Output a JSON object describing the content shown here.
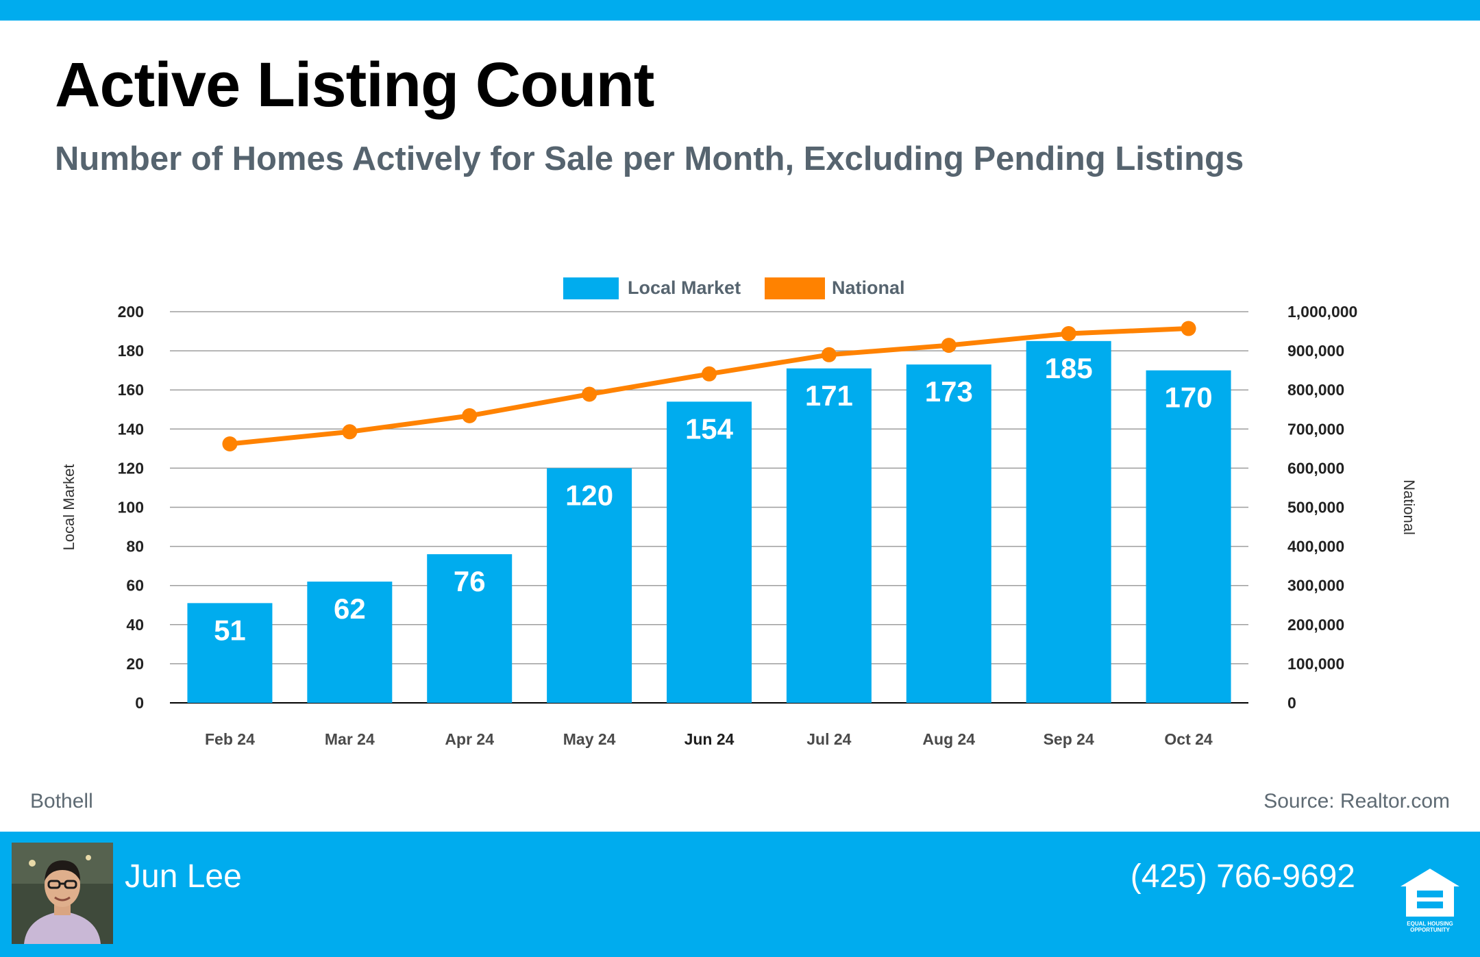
{
  "header": {
    "title": "Active Listing Count",
    "subtitle": "Number of Homes Actively for Sale per Month, Excluding Pending Listings"
  },
  "footer": {
    "location": "Bothell",
    "source": "Source: Realtor.com",
    "agent_name": "Jun Lee",
    "agent_phone": "(425) 766-9692",
    "eho_text": "EQUAL HOUSING OPPORTUNITY"
  },
  "colors": {
    "accent": "#00acee",
    "bar": "#00acee",
    "line": "#ff8200",
    "title": "#000000",
    "subtitle": "#56646f"
  },
  "chart_data": {
    "type": "bar",
    "title": "Active Listing Count",
    "subtitle": "Number of Homes Actively for Sale per Month, Excluding Pending Listings",
    "categories": [
      "Feb 24",
      "Mar 24",
      "Apr 24",
      "May 24",
      "Jun 24",
      "Jul 24",
      "Aug 24",
      "Sep 24",
      "Oct 24"
    ],
    "series": [
      {
        "name": "Local Market",
        "type": "bar",
        "axis": "left",
        "values": [
          51,
          62,
          76,
          120,
          154,
          171,
          173,
          185,
          170
        ]
      },
      {
        "name": "National",
        "type": "line",
        "axis": "right",
        "values": [
          662000,
          693000,
          734000,
          789000,
          841000,
          890000,
          914000,
          944000,
          957000
        ]
      }
    ],
    "ylabel_left": "Local Market",
    "ylabel_right": "National",
    "ylim_left": [
      0,
      200
    ],
    "ylim_right": [
      0,
      1000000
    ],
    "yticks_left": [
      "0",
      "20",
      "40",
      "60",
      "80",
      "100",
      "120",
      "140",
      "160",
      "180",
      "200"
    ],
    "yticks_right": [
      "0",
      "100,000",
      "200,000",
      "300,000",
      "400,000",
      "500,000",
      "600,000",
      "700,000",
      "800,000",
      "900,000",
      "1,000,000"
    ],
    "legend": [
      "Local Market",
      "National"
    ],
    "legend_position": "top-center",
    "grid": true
  }
}
